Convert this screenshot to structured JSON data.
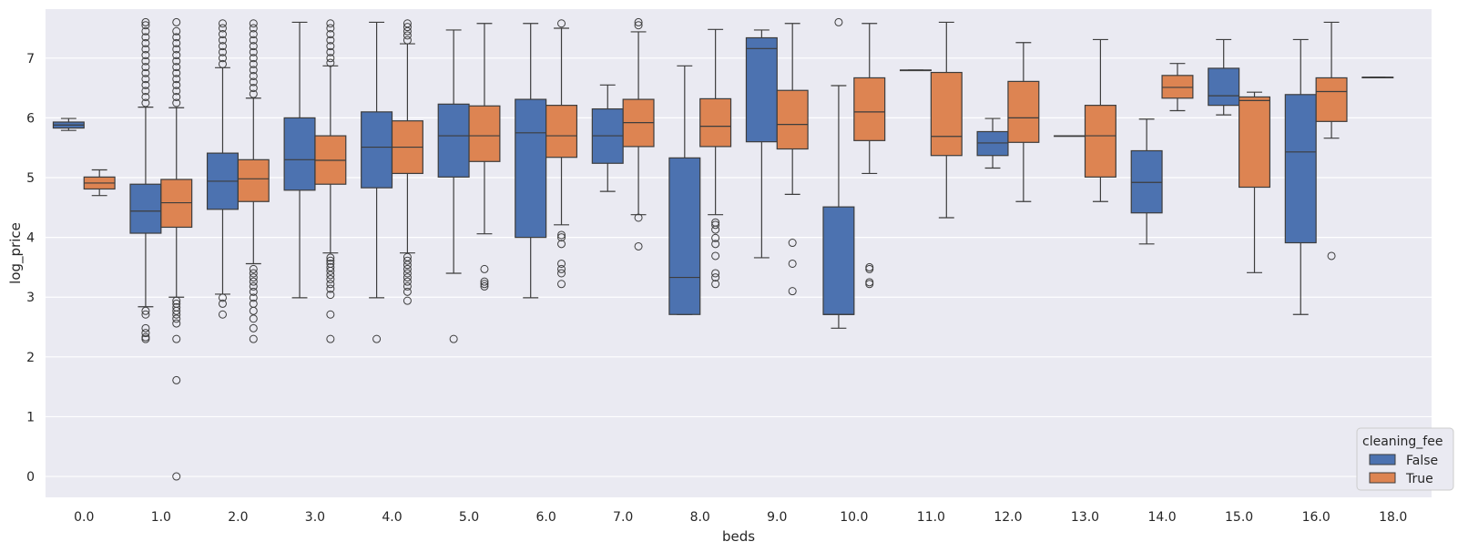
{
  "chart_data": {
    "type": "boxplot",
    "title": "",
    "xlabel": "beds",
    "ylabel": "log_price",
    "ylim": [
      -0.35,
      7.82
    ],
    "yticks": [
      0,
      1,
      2,
      3,
      4,
      5,
      6,
      7
    ],
    "categories": [
      "0.0",
      "1.0",
      "2.0",
      "3.0",
      "4.0",
      "5.0",
      "6.0",
      "7.0",
      "8.0",
      "9.0",
      "10.0",
      "11.0",
      "12.0",
      "13.0",
      "14.0",
      "15.0",
      "16.0",
      "18.0"
    ],
    "legend": {
      "title": "cleaning_fee",
      "position": "bottom-right",
      "entries": [
        "False",
        "True"
      ]
    },
    "colors": {
      "False": "#4c72b0",
      "True": "#dd8452",
      "background": "#eaeaf2",
      "grid": "#ffffff",
      "line": "#3d3d3d"
    },
    "series": [
      {
        "name": "False",
        "boxes": [
          {
            "cat": "0.0",
            "q1": 5.83,
            "med": 5.88,
            "q3": 5.93,
            "lo": 5.79,
            "hi": 5.99,
            "out": []
          },
          {
            "cat": "1.0",
            "q1": 4.07,
            "med": 4.44,
            "q3": 4.89,
            "lo": 2.84,
            "hi": 6.18,
            "out": [
              2.3,
              2.33,
              2.48,
              2.4,
              2.71,
              2.77,
              6.25,
              6.35,
              6.45,
              6.55,
              6.65,
              6.75,
              6.85,
              6.95,
              7.05,
              7.15,
              7.25,
              7.35,
              7.45,
              7.55,
              7.6
            ]
          },
          {
            "cat": "2.0",
            "q1": 4.47,
            "med": 4.94,
            "q3": 5.41,
            "lo": 3.05,
            "hi": 6.84,
            "out": [
              2.71,
              2.89,
              2.99,
              6.9,
              7.0,
              7.1,
              7.2,
              7.3,
              7.4,
              7.5,
              7.58
            ]
          },
          {
            "cat": "3.0",
            "q1": 4.79,
            "med": 5.3,
            "q3": 6.0,
            "lo": 2.99,
            "hi": 7.6,
            "out": []
          },
          {
            "cat": "4.0",
            "q1": 4.83,
            "med": 5.51,
            "q3": 6.1,
            "lo": 2.99,
            "hi": 7.6,
            "out": [
              2.3
            ]
          },
          {
            "cat": "5.0",
            "q1": 5.01,
            "med": 5.7,
            "q3": 6.23,
            "lo": 3.4,
            "hi": 7.47,
            "out": [
              2.3
            ]
          },
          {
            "cat": "6.0",
            "q1": 4.0,
            "med": 5.75,
            "q3": 6.31,
            "lo": 2.99,
            "hi": 7.58,
            "out": []
          },
          {
            "cat": "7.0",
            "q1": 5.24,
            "med": 5.7,
            "q3": 6.15,
            "lo": 4.77,
            "hi": 6.55,
            "out": []
          },
          {
            "cat": "8.0",
            "q1": 2.71,
            "med": 3.33,
            "q3": 5.33,
            "lo": 2.71,
            "hi": 6.87,
            "out": []
          },
          {
            "cat": "9.0",
            "q1": 5.6,
            "med": 7.16,
            "q3": 7.34,
            "lo": 3.66,
            "hi": 7.47,
            "out": []
          },
          {
            "cat": "10.0",
            "q1": 2.71,
            "med": 2.71,
            "q3": 4.51,
            "lo": 2.48,
            "hi": 6.54,
            "out": [
              7.6
            ]
          },
          {
            "cat": "11.0",
            "q1": 6.8,
            "med": 6.8,
            "q3": 6.8,
            "lo": 6.8,
            "hi": 6.8,
            "out": []
          },
          {
            "cat": "12.0",
            "q1": 5.37,
            "med": 5.58,
            "q3": 5.77,
            "lo": 5.16,
            "hi": 5.99,
            "out": []
          },
          {
            "cat": "13.0",
            "q1": 5.7,
            "med": 5.7,
            "q3": 5.7,
            "lo": 5.7,
            "hi": 5.7,
            "out": []
          },
          {
            "cat": "14.0",
            "q1": 4.41,
            "med": 4.92,
            "q3": 5.45,
            "lo": 3.89,
            "hi": 5.98,
            "out": []
          },
          {
            "cat": "15.0",
            "q1": 6.21,
            "med": 6.37,
            "q3": 6.83,
            "lo": 6.05,
            "hi": 7.31,
            "out": []
          },
          {
            "cat": "16.0",
            "q1": 3.91,
            "med": 5.43,
            "q3": 6.39,
            "lo": 2.71,
            "hi": 7.31,
            "out": []
          },
          {
            "cat": "18.0",
            "q1": 6.68,
            "med": 6.68,
            "q3": 6.68,
            "lo": 6.68,
            "hi": 6.68,
            "out": []
          }
        ]
      },
      {
        "name": "True",
        "boxes": [
          {
            "cat": "0.0",
            "q1": 4.81,
            "med": 4.91,
            "q3": 5.01,
            "lo": 4.7,
            "hi": 5.13,
            "out": []
          },
          {
            "cat": "1.0",
            "q1": 4.17,
            "med": 4.58,
            "q3": 4.97,
            "lo": 3.0,
            "hi": 6.17,
            "out": [
              0.0,
              1.61,
              2.3,
              2.56,
              2.64,
              2.71,
              2.77,
              2.83,
              2.89,
              2.94,
              6.25,
              6.35,
              6.45,
              6.55,
              6.65,
              6.75,
              6.85,
              6.95,
              7.05,
              7.15,
              7.25,
              7.35,
              7.45,
              7.6
            ]
          },
          {
            "cat": "2.0",
            "q1": 4.6,
            "med": 4.98,
            "q3": 5.3,
            "lo": 3.56,
            "hi": 6.33,
            "out": [
              2.3,
              2.48,
              2.64,
              2.77,
              2.89,
              2.99,
              3.09,
              3.18,
              3.26,
              3.33,
              3.4,
              3.47,
              6.4,
              6.5,
              6.6,
              6.7,
              6.8,
              6.9,
              7.0,
              7.1,
              7.2,
              7.3,
              7.4,
              7.5,
              7.58
            ]
          },
          {
            "cat": "3.0",
            "q1": 4.89,
            "med": 5.29,
            "q3": 5.7,
            "lo": 3.74,
            "hi": 6.87,
            "out": [
              2.3,
              2.71,
              3.04,
              3.14,
              3.22,
              3.3,
              3.37,
              3.44,
              3.5,
              3.56,
              3.61,
              3.66,
              6.92,
              7.0,
              7.1,
              7.2,
              7.3,
              7.4,
              7.5,
              7.58
            ]
          },
          {
            "cat": "4.0",
            "q1": 5.07,
            "med": 5.51,
            "q3": 5.95,
            "lo": 3.74,
            "hi": 7.24,
            "out": [
              2.94,
              3.09,
              3.18,
              3.26,
              3.33,
              3.4,
              3.47,
              3.54,
              3.61,
              3.67,
              7.3,
              7.38,
              7.45,
              7.52,
              7.58
            ]
          },
          {
            "cat": "5.0",
            "q1": 5.27,
            "med": 5.7,
            "q3": 6.2,
            "lo": 4.06,
            "hi": 7.58,
            "out": [
              3.18,
              3.22,
              3.26,
              3.47
            ]
          },
          {
            "cat": "6.0",
            "q1": 5.34,
            "med": 5.7,
            "q3": 6.21,
            "lo": 4.21,
            "hi": 7.5,
            "out": [
              3.22,
              3.4,
              3.47,
              3.56,
              3.89,
              4.0,
              4.04,
              7.58
            ]
          },
          {
            "cat": "7.0",
            "q1": 5.52,
            "med": 5.92,
            "q3": 6.31,
            "lo": 4.38,
            "hi": 7.44,
            "out": [
              3.85,
              4.33,
              7.55,
              7.6
            ]
          },
          {
            "cat": "8.0",
            "q1": 5.52,
            "med": 5.86,
            "q3": 6.32,
            "lo": 4.38,
            "hi": 7.48,
            "out": [
              3.22,
              3.33,
              3.4,
              3.69,
              3.89,
              3.99,
              4.13,
              4.21,
              4.25
            ]
          },
          {
            "cat": "9.0",
            "q1": 5.48,
            "med": 5.89,
            "q3": 6.46,
            "lo": 4.72,
            "hi": 7.58,
            "out": [
              3.1,
              3.56,
              3.91
            ]
          },
          {
            "cat": "10.0",
            "q1": 5.62,
            "med": 6.1,
            "q3": 6.67,
            "lo": 5.07,
            "hi": 7.58,
            "out": [
              3.22,
              3.25,
              3.47,
              3.5
            ]
          },
          {
            "cat": "11.0",
            "q1": 5.37,
            "med": 5.69,
            "q3": 6.76,
            "lo": 4.33,
            "hi": 7.6,
            "out": []
          },
          {
            "cat": "12.0",
            "q1": 5.59,
            "med": 6.0,
            "q3": 6.61,
            "lo": 4.6,
            "hi": 7.26,
            "out": []
          },
          {
            "cat": "13.0",
            "q1": 5.01,
            "med": 5.7,
            "q3": 6.21,
            "lo": 4.6,
            "hi": 7.31,
            "out": []
          },
          {
            "cat": "14.0",
            "q1": 6.33,
            "med": 6.51,
            "q3": 6.71,
            "lo": 6.12,
            "hi": 6.91,
            "out": []
          },
          {
            "cat": "15.0",
            "q1": 4.84,
            "med": 6.29,
            "q3": 6.35,
            "lo": 3.41,
            "hi": 6.43,
            "out": []
          },
          {
            "cat": "16.0",
            "q1": 5.94,
            "med": 6.44,
            "q3": 6.67,
            "lo": 5.66,
            "hi": 7.6,
            "out": [
              3.69
            ]
          }
        ]
      }
    ]
  }
}
